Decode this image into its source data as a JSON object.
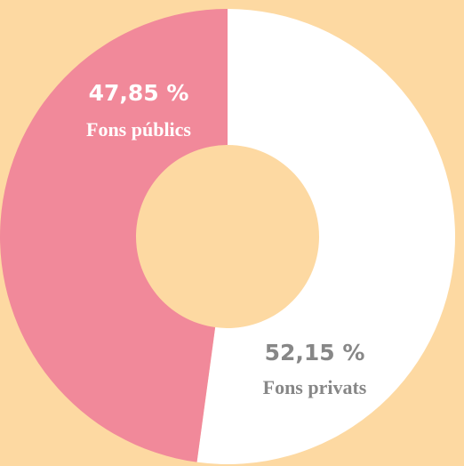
{
  "chart_data": {
    "type": "donut",
    "categories": [
      "Fons privats",
      "Fons públics"
    ],
    "values": [
      52.15,
      47.85
    ],
    "value_labels": [
      "52,15 %",
      "47,85 %"
    ],
    "colors": [
      "#ffffff",
      "#f1899a"
    ],
    "label_colors": [
      "#878787",
      "#ffffff"
    ]
  }
}
